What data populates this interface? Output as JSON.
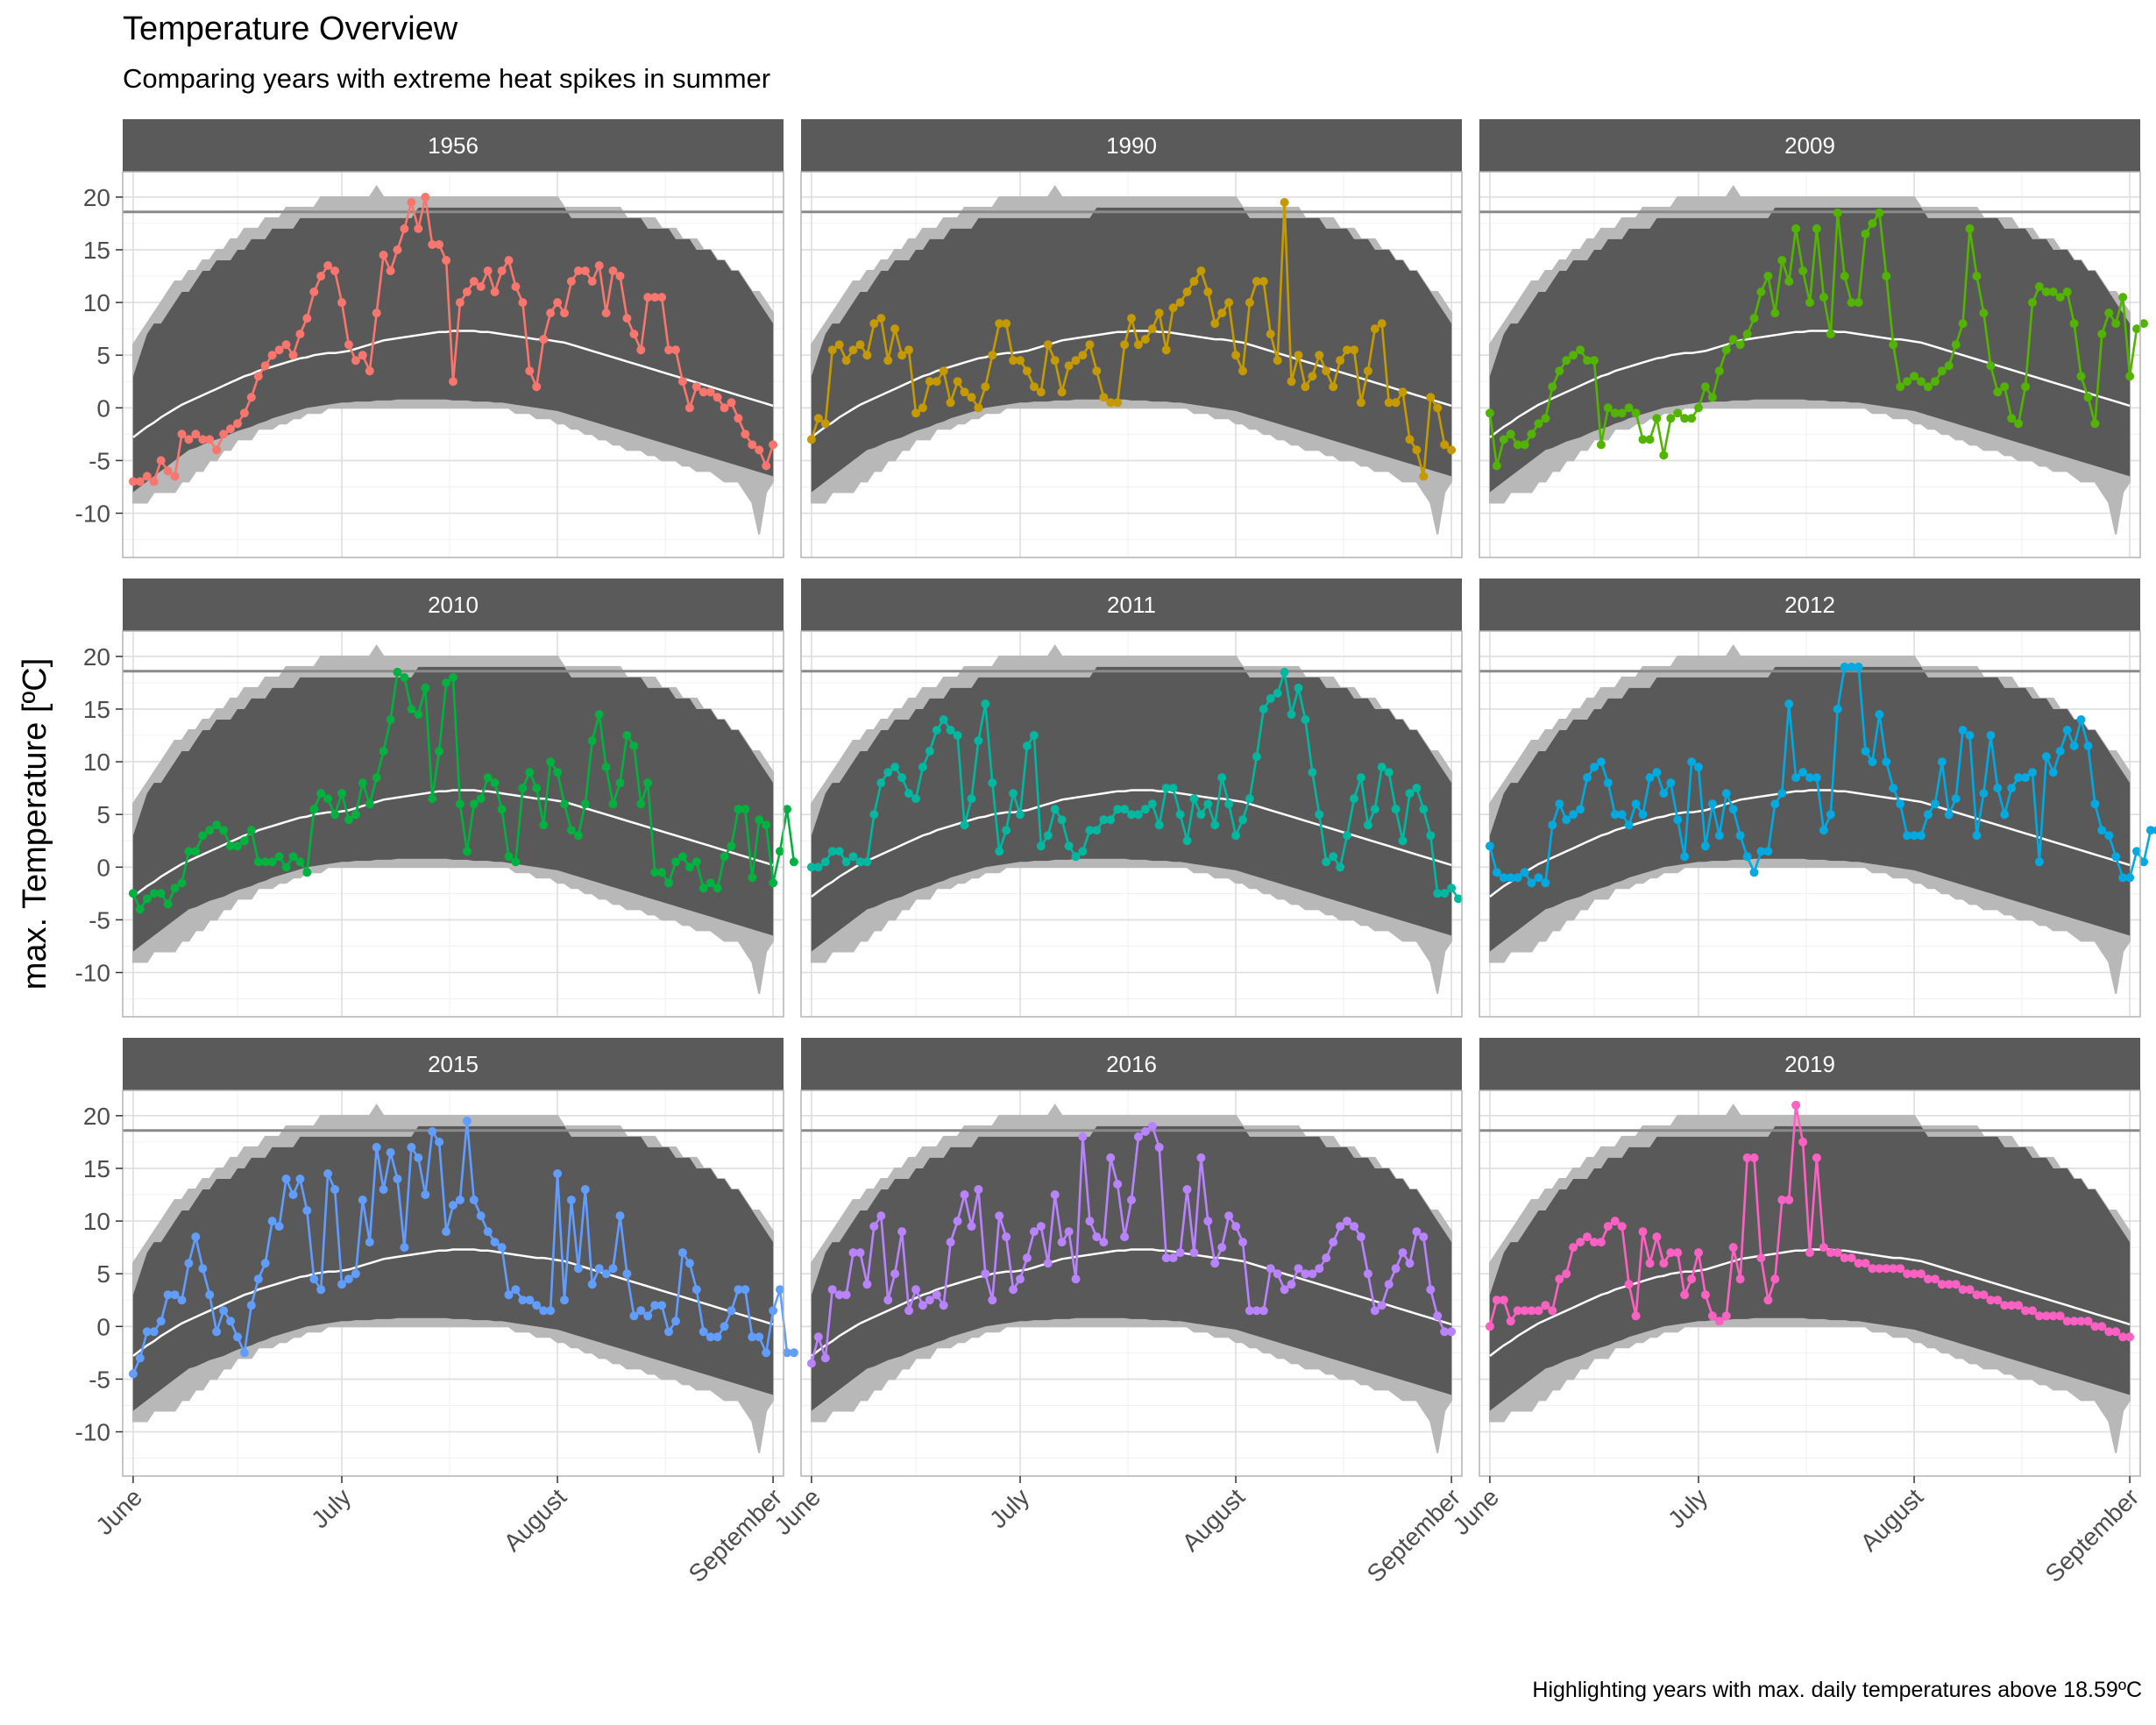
{
  "chart_data": {
    "type": "line",
    "title": "Temperature Overview",
    "subtitle": "Comparing years with extreme heat spikes in summer",
    "caption": "Highlighting years with max. daily temperatures above 18.59ºC",
    "ylabel": "max. Temperature [ºC]",
    "xlabel": "",
    "ylim": [
      -14.2,
      22.4
    ],
    "yticks": [
      -10,
      -5,
      0,
      5,
      10,
      15,
      20
    ],
    "x_range_days": [
      -1.5,
      93.5
    ],
    "x_ticks": [
      {
        "label": "June",
        "day": 0
      },
      {
        "label": "July",
        "day": 30
      },
      {
        "label": "August",
        "day": 61
      },
      {
        "label": "September",
        "day": 92
      }
    ],
    "threshold": 18.59,
    "grid": true,
    "layout": "facet-3x3",
    "background_band": {
      "description_values": "smoothed min/max envelope of all summers",
      "upper": [
        3,
        5,
        7,
        8,
        8,
        9,
        10,
        11,
        11,
        12,
        13,
        13,
        14,
        14,
        14,
        15,
        15,
        16,
        16,
        16,
        17,
        17,
        17,
        17,
        18,
        18,
        18,
        18,
        18,
        18,
        18,
        18,
        18,
        18,
        18,
        18,
        18,
        18,
        18,
        18,
        18,
        19,
        19,
        19,
        19,
        19,
        19,
        19,
        19,
        19,
        19,
        19,
        19,
        19,
        19,
        19,
        19,
        19,
        19,
        19,
        19,
        19,
        19,
        18,
        18,
        18,
        18,
        18,
        18,
        18,
        18,
        18,
        18,
        18,
        17,
        17,
        17,
        17,
        16,
        16,
        16,
        15,
        15,
        15,
        14,
        14,
        13,
        13,
        12,
        11,
        10,
        9,
        8
      ],
      "lower": [
        -8,
        -7.5,
        -7,
        -6.5,
        -6,
        -5.5,
        -5,
        -4.5,
        -4,
        -3.8,
        -3.5,
        -3.2,
        -3,
        -2.8,
        -2.5,
        -2.2,
        -2,
        -1.8,
        -1.5,
        -1.3,
        -1,
        -0.8,
        -0.6,
        -0.4,
        -0.2,
        0,
        0.1,
        0.2,
        0.3,
        0.4,
        0.5,
        0.5,
        0.6,
        0.6,
        0.6,
        0.7,
        0.7,
        0.7,
        0.8,
        0.8,
        0.8,
        0.8,
        0.8,
        0.8,
        0.8,
        0.8,
        0.7,
        0.7,
        0.7,
        0.6,
        0.6,
        0.6,
        0.5,
        0.5,
        0.4,
        0.3,
        0.2,
        0.1,
        0,
        -0.1,
        -0.2,
        -0.3,
        -0.5,
        -0.7,
        -0.9,
        -1.1,
        -1.3,
        -1.5,
        -1.7,
        -1.9,
        -2.1,
        -2.3,
        -2.5,
        -2.7,
        -2.9,
        -3.1,
        -3.3,
        -3.5,
        -3.7,
        -3.9,
        -4.1,
        -4.3,
        -4.5,
        -4.7,
        -4.9,
        -5.1,
        -5.3,
        -5.5,
        -5.7,
        -5.9,
        -6.1,
        -6.3,
        -6.5
      ],
      "outer_upper": [
        6,
        7,
        8,
        9,
        10,
        11,
        12,
        12,
        13,
        13,
        14,
        14,
        15,
        15,
        16,
        16,
        17,
        17,
        17,
        18,
        18,
        18,
        19,
        19,
        19,
        19,
        19,
        20,
        20,
        20,
        20,
        20,
        20,
        20,
        20,
        21,
        20,
        20,
        20,
        20,
        20,
        20,
        20,
        20,
        20,
        20,
        20,
        20,
        20,
        20,
        20,
        20,
        20,
        20,
        20,
        20,
        20,
        20,
        20,
        20,
        20,
        20,
        19,
        19,
        19,
        19,
        19,
        19,
        19,
        19,
        19,
        18,
        18,
        18,
        18,
        18,
        17,
        17,
        17,
        16,
        16,
        16,
        15,
        15,
        14,
        14,
        13,
        13,
        12,
        11,
        11,
        10,
        9
      ],
      "outer_lower": [
        -9,
        -9,
        -9,
        -8,
        -8,
        -8,
        -8,
        -7,
        -7,
        -6,
        -6,
        -5,
        -5,
        -4,
        -4,
        -3,
        -3,
        -3,
        -2,
        -2,
        -2,
        -1.5,
        -1.5,
        -1,
        -1,
        -0.5,
        -0.5,
        -0.5,
        0,
        0,
        0,
        0,
        0,
        0,
        0,
        0,
        0,
        0,
        0,
        0,
        0,
        0,
        0,
        0,
        0,
        0,
        0,
        0,
        0,
        0,
        0,
        0,
        0,
        0,
        0,
        -0.5,
        -0.5,
        -0.5,
        -1,
        -1,
        -1,
        -1.5,
        -1.5,
        -2,
        -2,
        -2.5,
        -2.5,
        -3,
        -3,
        -3.5,
        -3.5,
        -4,
        -4,
        -4,
        -4.5,
        -4.5,
        -5,
        -5,
        -5,
        -5.5,
        -5.5,
        -6,
        -6,
        -6,
        -6.5,
        -7,
        -7,
        -7,
        -8,
        -9,
        -12,
        -8,
        -7
      ]
    },
    "mean_line": [
      -2.8,
      -2.3,
      -1.8,
      -1.4,
      -0.9,
      -0.5,
      -0.1,
      0.3,
      0.6,
      0.9,
      1.2,
      1.5,
      1.8,
      2.1,
      2.4,
      2.7,
      3.0,
      3.2,
      3.5,
      3.7,
      3.9,
      4.1,
      4.3,
      4.5,
      4.7,
      4.8,
      5.0,
      5.1,
      5.2,
      5.2,
      5.3,
      5.4,
      5.6,
      5.8,
      6.0,
      6.2,
      6.4,
      6.5,
      6.6,
      6.7,
      6.8,
      6.9,
      7.0,
      7.1,
      7.2,
      7.2,
      7.3,
      7.3,
      7.3,
      7.3,
      7.2,
      7.2,
      7.1,
      7.0,
      6.9,
      6.8,
      6.7,
      6.6,
      6.5,
      6.5,
      6.4,
      6.3,
      6.2,
      6.0,
      5.8,
      5.6,
      5.4,
      5.2,
      5.0,
      4.8,
      4.6,
      4.4,
      4.2,
      4.0,
      3.8,
      3.6,
      3.4,
      3.2,
      3.0,
      2.8,
      2.6,
      2.4,
      2.2,
      2.0,
      1.8,
      1.6,
      1.4,
      1.2,
      1.0,
      0.8,
      0.6,
      0.4,
      0.2
    ],
    "series": [
      {
        "name": "1956",
        "color": "#F8766D",
        "values": [
          -7,
          -7,
          -6.5,
          -7,
          -5,
          -6,
          -6.5,
          -2.5,
          -3,
          -2.5,
          -3,
          -3,
          -4,
          -2.5,
          -2,
          -1.5,
          -0.5,
          1,
          3,
          4,
          5,
          5.5,
          6,
          5,
          7,
          8.5,
          11,
          12.5,
          13.5,
          13,
          10,
          6,
          4.5,
          5,
          3.5,
          9,
          14.5,
          13,
          15,
          17,
          19.5,
          17,
          20,
          15.5,
          15.5,
          14,
          2.5,
          10,
          11,
          12,
          11.5,
          13,
          11,
          13,
          14,
          11.5,
          10,
          3.5,
          2,
          6.5,
          9,
          10,
          9,
          12,
          13,
          13,
          12,
          13.5,
          9,
          13,
          12.5,
          8.5,
          7,
          5.5,
          10.5,
          10.5,
          10.5,
          5.5,
          5.5,
          2.5,
          0,
          2,
          1.5,
          1.5,
          1,
          0,
          0.5,
          -1,
          -2.5,
          -3.5,
          -4,
          -5.5,
          -3.5
        ]
      },
      {
        "name": "1990",
        "color": "#C49A00",
        "values": [
          -3,
          -1,
          -1.5,
          5.5,
          6,
          4.5,
          5.5,
          6,
          5,
          8,
          8.5,
          4.5,
          7.5,
          5,
          5.5,
          -0.5,
          0,
          2.5,
          2.5,
          3.5,
          0.5,
          2.5,
          1.5,
          1,
          0,
          2,
          5,
          8,
          8,
          4.5,
          4.5,
          3.5,
          2,
          1.5,
          6,
          4.5,
          1.5,
          4,
          4.5,
          5,
          6,
          3.5,
          1,
          0.5,
          0.5,
          6,
          8.5,
          6,
          6.5,
          7.5,
          9,
          5.5,
          9.5,
          10,
          11,
          12,
          13,
          11,
          8,
          9,
          10,
          5,
          3.5,
          10,
          12,
          12,
          7,
          4.5,
          19.5,
          2.5,
          5,
          2,
          3,
          5,
          3.5,
          2,
          4.5,
          5.5,
          5.5,
          0.5,
          3.5,
          7.5,
          8,
          0.5,
          0.5,
          1.5,
          -3,
          -4,
          -6.5,
          1,
          0,
          -3.5,
          -4
        ]
      },
      {
        "name": "2009",
        "color": "#53B400",
        "values": [
          -0.5,
          -5.5,
          -3,
          -2.5,
          -3.5,
          -3.5,
          -2.5,
          -1.5,
          -1,
          2,
          3.5,
          4.5,
          5,
          5.5,
          4.5,
          4.5,
          -3.5,
          0,
          -0.5,
          -0.5,
          0,
          -0.5,
          -3,
          -3,
          -1,
          -4.5,
          -1,
          -0.5,
          -1,
          -1,
          0,
          2,
          1,
          3.5,
          5.5,
          6.5,
          6,
          7,
          8.5,
          11,
          12.5,
          9,
          14,
          12,
          17,
          13,
          10,
          17,
          10.5,
          7,
          18.5,
          12.5,
          10,
          10,
          16.5,
          17.5,
          18.5,
          12.5,
          6,
          2,
          2.5,
          3,
          2.5,
          2,
          2.5,
          3.5,
          4,
          6,
          8,
          17,
          12.5,
          9,
          4,
          1.5,
          2,
          -1,
          -1.5,
          2,
          10,
          11.5,
          11,
          11,
          10.5,
          11,
          8,
          3,
          1,
          -1.5,
          7,
          9,
          8,
          10.5,
          3,
          7.5,
          8
        ]
      },
      {
        "name": "2010",
        "color": "#00B140",
        "values": [
          -2.5,
          -4,
          -3,
          -2.5,
          -2.5,
          -3.5,
          -2,
          -1.5,
          1.5,
          1.5,
          3,
          3.5,
          4,
          3.5,
          2,
          2,
          2.5,
          3.5,
          0.5,
          0.5,
          0.5,
          1,
          0,
          1,
          0.5,
          -0.5,
          5.5,
          7,
          6.5,
          5,
          7,
          4.5,
          5,
          8,
          6,
          8.5,
          11,
          14,
          18.5,
          18,
          15,
          14.5,
          17,
          6.5,
          11,
          17.5,
          18,
          6,
          1.5,
          6,
          6.5,
          8.5,
          8,
          5.5,
          1,
          0.5,
          7.5,
          9,
          7.5,
          4,
          10,
          9,
          6,
          3.5,
          3,
          6,
          12,
          14.5,
          9.5,
          6,
          8,
          12.5,
          11.5,
          6,
          8,
          -0.5,
          -0.5,
          -1.5,
          0.5,
          1,
          0,
          0.5,
          -2,
          -1.5,
          -2,
          1,
          2,
          5.5,
          5.5,
          -1,
          4.5,
          4,
          -1.5,
          1.5,
          5.5,
          0.5
        ]
      },
      {
        "name": "2011",
        "color": "#00B7A0",
        "values": [
          0,
          0,
          0.5,
          1.5,
          1.5,
          0.5,
          1,
          0.5,
          0.5,
          5,
          8,
          9,
          9.5,
          8.5,
          7,
          6.5,
          9.5,
          11,
          13,
          14,
          13,
          12.5,
          4,
          6.5,
          12,
          15.5,
          8,
          1.5,
          3.5,
          7,
          5,
          11.5,
          12.5,
          2,
          3,
          5.5,
          4.5,
          2,
          1,
          1.5,
          3.5,
          3.5,
          4.5,
          4.5,
          5.5,
          5.5,
          5,
          5,
          5.5,
          6,
          4,
          7.5,
          7.5,
          5,
          2.5,
          6.5,
          5,
          6,
          4,
          8.5,
          6,
          3,
          4.5,
          6.5,
          10.5,
          15,
          16,
          16.5,
          18.5,
          14.5,
          17,
          14,
          9,
          5,
          0.5,
          1,
          0,
          3,
          6.5,
          8.5,
          4,
          5.5,
          9.5,
          9,
          5.5,
          2.5,
          7,
          7.5,
          5.5,
          3,
          -2.5,
          -2.5,
          -2,
          -3
        ]
      },
      {
        "name": "2012",
        "color": "#00A9E0",
        "values": [
          2,
          -0.5,
          -1,
          -1,
          -1,
          -0.5,
          -1.5,
          -1,
          -1.5,
          4,
          6,
          4.5,
          5,
          5.5,
          8.5,
          9.5,
          10,
          8,
          5,
          5,
          4,
          6,
          5,
          8.5,
          9,
          7,
          8,
          4.5,
          1,
          10,
          9.5,
          2,
          6,
          3,
          7,
          5.5,
          3,
          1,
          -0.5,
          1.5,
          1.5,
          6,
          7,
          15.5,
          8.5,
          9,
          8.5,
          8.5,
          3.5,
          5,
          15,
          19,
          19,
          19,
          11,
          10,
          14.5,
          10,
          7.5,
          6,
          3,
          3,
          3,
          5,
          6,
          10,
          5,
          6.5,
          13,
          12.5,
          3,
          7,
          12.5,
          7.5,
          5,
          7.5,
          8.5,
          8.5,
          9,
          0.5,
          10.5,
          9,
          11,
          13,
          11.5,
          14,
          11.5,
          6,
          3.5,
          3,
          1,
          -1,
          -1,
          1.5,
          0.5,
          3.5,
          3.5,
          -0.5,
          -2.5
        ]
      },
      {
        "name": "2015",
        "color": "#619CFF",
        "values": [
          -4.5,
          -3,
          -0.5,
          -0.5,
          0.5,
          3,
          3,
          2.5,
          6,
          8.5,
          5.5,
          3,
          -0.5,
          1.5,
          0.5,
          -1,
          -2.5,
          2,
          4.5,
          6,
          10,
          9.5,
          14,
          12.5,
          14,
          11,
          4.5,
          3.5,
          14.5,
          13,
          4,
          4.5,
          5,
          12,
          8,
          17,
          13,
          16.5,
          14,
          7.5,
          17,
          16,
          12.5,
          18.5,
          17.5,
          9,
          11.5,
          12,
          19.5,
          12,
          10.5,
          9,
          8,
          7.5,
          3,
          3.5,
          2.5,
          2.5,
          2,
          1.5,
          1.5,
          14.5,
          2.5,
          12,
          5.5,
          13,
          4,
          5.5,
          5,
          5.5,
          10.5,
          5,
          1,
          1.5,
          1,
          2,
          2,
          -0.5,
          0.5,
          7,
          6,
          3.5,
          -0.5,
          -1,
          -1,
          0,
          1.5,
          3.5,
          3.5,
          -1,
          -1,
          -2.5,
          1.5,
          3.5,
          -2.5,
          -2.5
        ]
      },
      {
        "name": "2016",
        "color": "#B983FF",
        "values": [
          -3.5,
          -1,
          -3,
          3.5,
          3,
          3,
          7,
          7,
          4,
          9.5,
          10.5,
          2.5,
          5,
          9,
          1.5,
          3.5,
          2,
          2.5,
          3,
          2,
          8,
          10,
          12.5,
          9.5,
          13,
          5,
          2.5,
          10.5,
          8.5,
          3.5,
          4.5,
          6.5,
          9,
          9.5,
          6,
          12.5,
          8,
          9,
          4.5,
          18,
          10,
          8.5,
          8,
          16,
          13.5,
          8.5,
          12,
          18,
          18.5,
          19,
          17,
          6.5,
          6.5,
          7,
          13,
          7,
          16,
          10,
          6,
          7.5,
          10.5,
          9.5,
          8,
          1.5,
          1.5,
          1.5,
          5.5,
          5,
          3.5,
          4,
          5.5,
          5,
          5,
          5.5,
          6.5,
          8,
          9.5,
          10,
          9.5,
          8.5,
          5,
          1.5,
          2,
          4,
          5.5,
          7,
          6,
          9,
          8.5,
          3.5,
          1,
          -0.5,
          -0.5
        ]
      },
      {
        "name": "2019",
        "color": "#FF61C3",
        "values": [
          0,
          2.5,
          2.5,
          0.5,
          1.5,
          1.5,
          1.5,
          1.5,
          2,
          1.5,
          4.5,
          5,
          7.5,
          8,
          8.5,
          8,
          8,
          9.5,
          10,
          9.5,
          4,
          1,
          9,
          6,
          8.5,
          6,
          7,
          7,
          3,
          4.5,
          7,
          3,
          1,
          0.5,
          1,
          7.5,
          4.5,
          16,
          16,
          6.5,
          2.5,
          4.5,
          12,
          12,
          21,
          17.5,
          7,
          16,
          7.5,
          7,
          7,
          6.5,
          6.5,
          6,
          6,
          5.5,
          5.5,
          5.5,
          5.5,
          5.5,
          5,
          5,
          5,
          4.5,
          4.5,
          4,
          4,
          4,
          3.5,
          3.5,
          3,
          3,
          2.5,
          2.5,
          2,
          2,
          2,
          1.5,
          1.5,
          1,
          1,
          1,
          1,
          0.5,
          0.5,
          0.5,
          0.5,
          0,
          0,
          -0.5,
          -0.5,
          -1,
          -1
        ]
      }
    ]
  }
}
